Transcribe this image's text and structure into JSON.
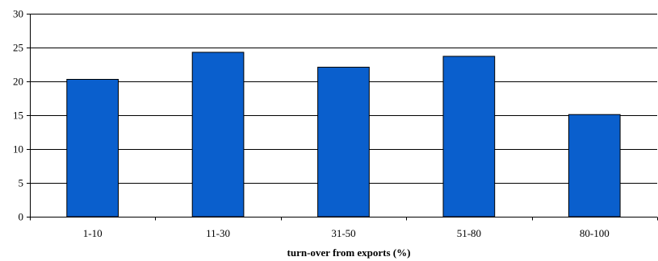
{
  "chart_data": {
    "type": "bar",
    "categories": [
      "1-10",
      "11-30",
      "31-50",
      "51-80",
      "80-100"
    ],
    "values": [
      20.3,
      24.3,
      22.1,
      23.7,
      15.1
    ],
    "title": "",
    "xlabel": "turn-over from exports (%)",
    "ylabel": "",
    "ylim": [
      0,
      30
    ],
    "yticks": [
      0,
      5,
      10,
      15,
      20,
      25,
      30
    ],
    "grid": true,
    "legend": "none",
    "colors": {
      "bar": "#0a5fcd",
      "bar_stroke": "#000000",
      "grid": "#000000",
      "axis": "#000000"
    }
  }
}
